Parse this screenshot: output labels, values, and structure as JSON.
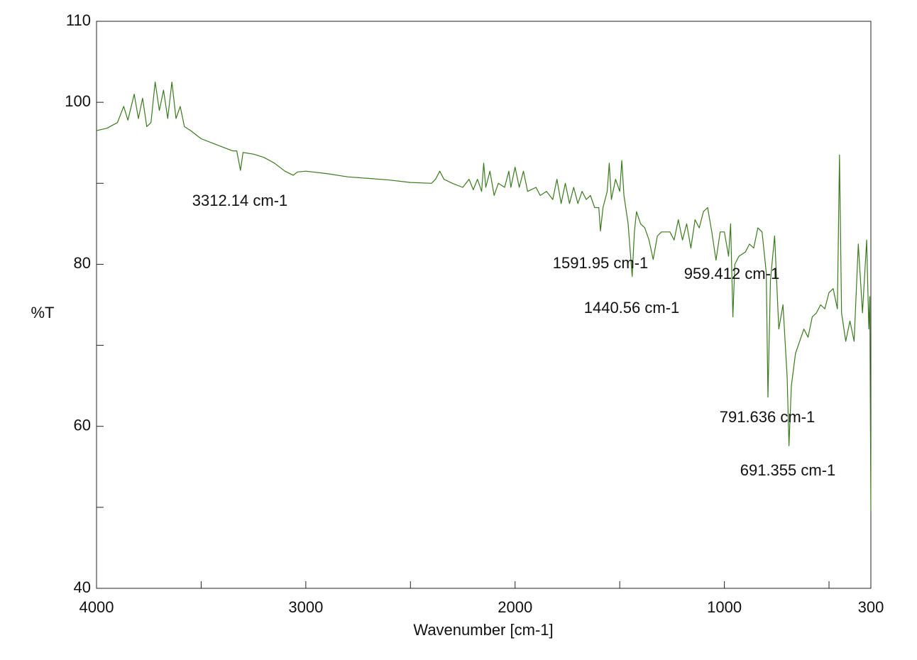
{
  "chart_data": {
    "type": "line",
    "xlabel": "Wavenumber [cm-1]",
    "ylabel": "%T",
    "xlim": [
      4000,
      300
    ],
    "ylim": [
      40,
      110
    ],
    "xticks": [
      4000,
      3000,
      2000,
      1000,
      300
    ],
    "xminorticks": [
      3500,
      2500,
      1500,
      500
    ],
    "yticks": [
      40,
      60,
      80,
      100,
      110
    ],
    "yminorticks": [
      50,
      70,
      90
    ],
    "series": [
      {
        "color": "#3b7a1f",
        "x": [
          4000,
          3950,
          3900,
          3870,
          3850,
          3820,
          3800,
          3780,
          3760,
          3740,
          3720,
          3700,
          3680,
          3660,
          3640,
          3620,
          3600,
          3580,
          3550,
          3500,
          3450,
          3400,
          3350,
          3330,
          3312.14,
          3300,
          3250,
          3200,
          3150,
          3100,
          3060,
          3040,
          3000,
          2900,
          2800,
          2700,
          2600,
          2500,
          2400,
          2380,
          2360,
          2340,
          2300,
          2250,
          2220,
          2200,
          2180,
          2160,
          2150,
          2140,
          2120,
          2100,
          2080,
          2050,
          2030,
          2020,
          2000,
          1980,
          1960,
          1940,
          1900,
          1880,
          1850,
          1820,
          1800,
          1780,
          1760,
          1740,
          1720,
          1700,
          1680,
          1660,
          1640,
          1620,
          1600,
          1591.95,
          1580,
          1560,
          1550,
          1540,
          1520,
          1500,
          1490,
          1480,
          1460,
          1440.56,
          1430,
          1420,
          1400,
          1380,
          1360,
          1340,
          1320,
          1300,
          1280,
          1260,
          1240,
          1220,
          1200,
          1180,
          1160,
          1140,
          1120,
          1100,
          1080,
          1060,
          1040,
          1020,
          1000,
          980,
          970,
          959.412,
          950,
          930,
          900,
          880,
          860,
          840,
          820,
          800,
          791.636,
          780,
          760,
          740,
          720,
          700,
          691.355,
          680,
          660,
          640,
          620,
          600,
          580,
          560,
          540,
          520,
          500,
          480,
          460,
          450,
          440,
          420,
          400,
          380,
          360,
          340,
          320,
          310,
          305,
          300
        ],
        "values": [
          96.5,
          96.8,
          97.5,
          99.5,
          97.8,
          101,
          98,
          100.5,
          97,
          97.5,
          102.5,
          99,
          101.5,
          98,
          102.5,
          98,
          99.5,
          97,
          96.5,
          95.5,
          95,
          94.5,
          94,
          94,
          91.6,
          93.8,
          93.6,
          93.2,
          92.5,
          91.5,
          91,
          91.4,
          91.5,
          91.2,
          90.8,
          90.6,
          90.4,
          90.1,
          90,
          90.5,
          91.5,
          90.5,
          90,
          89.5,
          90.5,
          89.2,
          90.5,
          89,
          92.5,
          89.5,
          91.5,
          88.5,
          90,
          89.5,
          91.5,
          89.5,
          92,
          89.5,
          91.5,
          89,
          89.5,
          88.5,
          89,
          88,
          90.5,
          87.5,
          90,
          87.5,
          89.5,
          87.5,
          89,
          88,
          88.5,
          87,
          87,
          84.1,
          87,
          89,
          92.5,
          88,
          90.5,
          89,
          92.8,
          88.5,
          85,
          78.5,
          84,
          86.5,
          85,
          84.5,
          83,
          80.6,
          83.5,
          84,
          84,
          84,
          83,
          85.5,
          83,
          85,
          82,
          85.5,
          84.5,
          86.5,
          87,
          84,
          80.5,
          84,
          84,
          81,
          85,
          73.5,
          80,
          81,
          81.5,
          82.5,
          82,
          84.5,
          84,
          79,
          63.6,
          78,
          83.5,
          72,
          75,
          66,
          57.6,
          65,
          69,
          70.5,
          72,
          71,
          73.5,
          74,
          75,
          74.5,
          76.5,
          77,
          74.5,
          93.5,
          74,
          70.5,
          73,
          70.5,
          82.5,
          74,
          83,
          72,
          76,
          49.5
        ]
      }
    ],
    "annotations": [
      {
        "label": "3312.14 cm-1",
        "x": 3312.14
      },
      {
        "label": "1591.95 cm-1",
        "x": 1591.95
      },
      {
        "label": "1440.56 cm-1",
        "x": 1440.56
      },
      {
        "label": "959.412 cm-1",
        "x": 959.412
      },
      {
        "label": "791.636 cm-1",
        "x": 791.636
      },
      {
        "label": "691.355 cm-1",
        "x": 691.355
      }
    ]
  }
}
